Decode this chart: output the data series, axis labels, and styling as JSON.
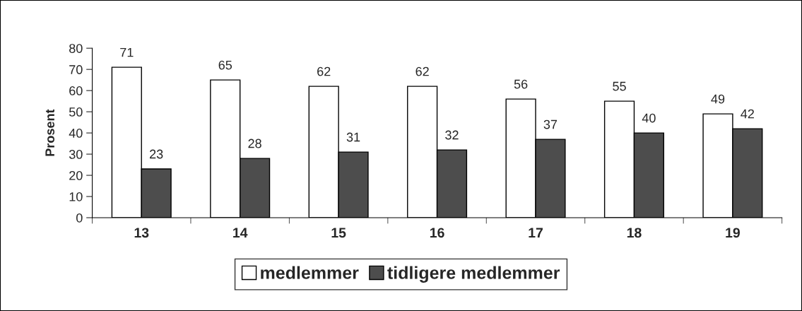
{
  "chart_data": {
    "type": "bar",
    "ylabel": "Prosent",
    "categories": [
      "13",
      "14",
      "15",
      "16",
      "17",
      "18",
      "19"
    ],
    "series": [
      {
        "name": "medlemmer",
        "color": "#ffffff",
        "values": [
          71,
          65,
          62,
          62,
          56,
          55,
          49
        ]
      },
      {
        "name": "tidligere medlemmer",
        "color": "#4d4d4d",
        "values": [
          23,
          28,
          31,
          32,
          37,
          40,
          42
        ]
      }
    ],
    "ylim": [
      0,
      80
    ],
    "yticks": [
      0,
      10,
      20,
      30,
      40,
      50,
      60,
      70,
      80
    ],
    "data_labels": true,
    "legend": "bottom"
  }
}
